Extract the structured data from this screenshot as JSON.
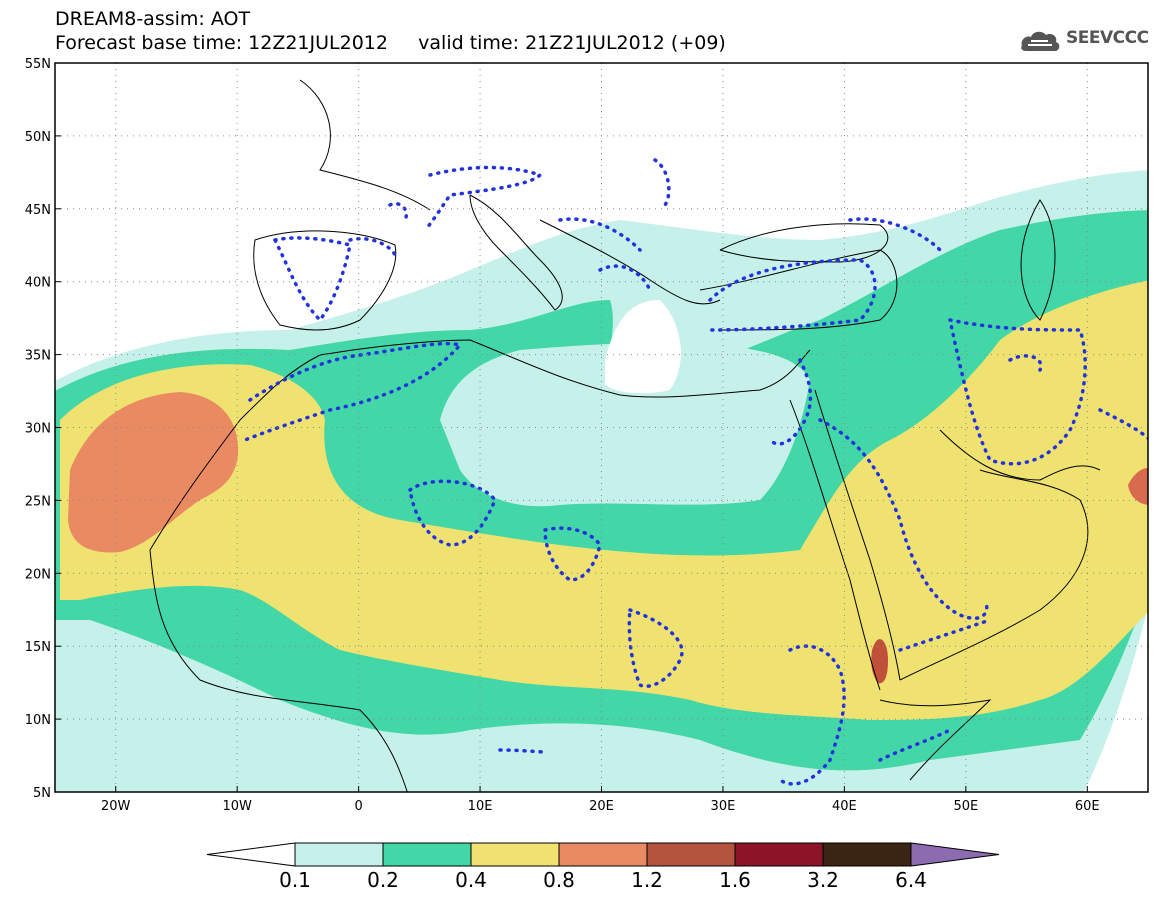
{
  "header": {
    "line1": "DREAM8-assim: AOT",
    "line2": "Forecast base time: 12Z21JUL2012     valid time: 21Z21JUL2012 (+09)",
    "logo": "SEEVCCC"
  },
  "map": {
    "lon_range": [
      -25,
      65
    ],
    "lat_range": [
      5,
      55
    ],
    "lat_labels": [
      "55N",
      "50N",
      "45N",
      "40N",
      "35N",
      "30N",
      "25N",
      "20N",
      "15N",
      "10N",
      "5N"
    ],
    "lon_labels": [
      "20W",
      "10W",
      "0",
      "10E",
      "20E",
      "30E",
      "40E",
      "50E",
      "60E"
    ],
    "field": "Aerosol optical thickness (AOT)",
    "colors": {
      "c01": "#c6f0ea",
      "c02": "#43d6a6",
      "c04": "#f0e270",
      "c08": "#ea8a63",
      "c12": "#b4533e",
      "c16": "#a01830",
      "c32": "#6b0a22",
      "c64": "#3a2414",
      "over": "#8c6bb1",
      "contour": "#2233dd",
      "coast": "#000000"
    }
  },
  "colorbar": {
    "ticks": [
      "0.1",
      "0.2",
      "0.4",
      "0.8",
      "1.2",
      "1.6",
      "3.2",
      "6.4"
    ],
    "colors": [
      "#c6f0ea",
      "#43d6a6",
      "#f0e270",
      "#ea8a63",
      "#b4533e",
      "#8c1428",
      "#3a2414"
    ]
  }
}
